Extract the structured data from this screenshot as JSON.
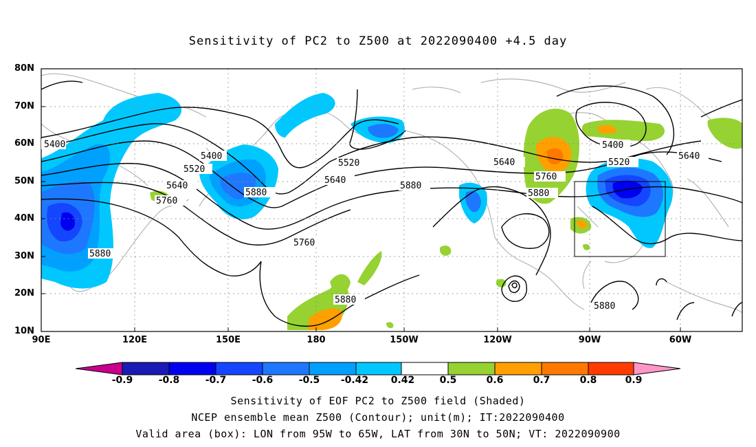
{
  "title": "Sensitivity of PC2 to Z500 at 2022090400 +4.5 day",
  "lat_labels": [
    "80N",
    "70N",
    "60N",
    "50N",
    "40N",
    "30N",
    "20N",
    "10N"
  ],
  "lon_labels": [
    "90E",
    "120E",
    "150E",
    "180",
    "150W",
    "120W",
    "90W",
    "60W"
  ],
  "colorbar": {
    "labels": [
      "-0.9",
      "-0.8",
      "-0.7",
      "-0.6",
      "-0.5",
      "-0.42",
      "0.42",
      "0.5",
      "0.6",
      "0.7",
      "0.8",
      "0.9"
    ],
    "colors": [
      "#c8008c",
      "#1a1ab4",
      "#0000f0",
      "#1446ff",
      "#1e78ff",
      "#00a0ff",
      "#00c8ff",
      "#ffffff",
      "#96d232",
      "#ffa000",
      "#ff7800",
      "#ff3c00",
      "#ff0000",
      "#ff96c8"
    ]
  },
  "contour_labels": {
    "l5400a": "5400",
    "l5400b": "5400",
    "l5400c": "5400",
    "l5520a": "5520",
    "l5520b": "5520",
    "l5520c": "5520",
    "l5640a": "5640",
    "l5640b": "5640",
    "l5640c": "5640",
    "l5640d": "5640",
    "l5760a": "5760",
    "l5760b": "5760",
    "l5760c": "5760",
    "l5880a": "5880",
    "l5880b": "5880",
    "l5880c": "5880",
    "l5880d": "5880",
    "l5880e": "5880",
    "l5880f": "5880"
  },
  "valid_box": {
    "lon_from": "95W",
    "lon_to": "65W",
    "lat_from": "30N",
    "lat_to": "50N"
  },
  "footer": [
    "Sensitivity of EOF PC2 to Z500 field (Shaded)",
    "NCEP ensemble mean Z500 (Contour); unit(m); IT:2022090400",
    "Valid area (box): LON from 95W to 65W, LAT from 30N to 50N; VT: 2022090900"
  ]
}
